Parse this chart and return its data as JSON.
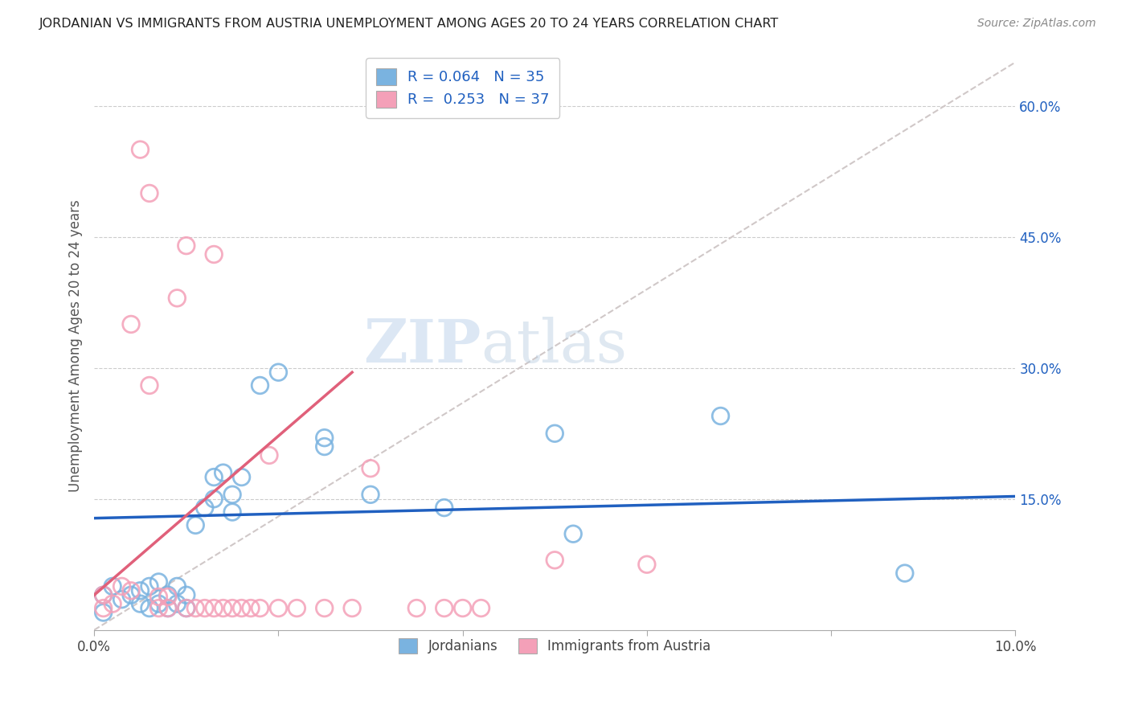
{
  "title": "JORDANIAN VS IMMIGRANTS FROM AUSTRIA UNEMPLOYMENT AMONG AGES 20 TO 24 YEARS CORRELATION CHART",
  "source": "Source: ZipAtlas.com",
  "ylabel": "Unemployment Among Ages 20 to 24 years",
  "xlim": [
    0.0,
    0.1
  ],
  "ylim": [
    0.0,
    0.65
  ],
  "yticks_right": [
    0.15,
    0.3,
    0.45,
    0.6
  ],
  "ytick_right_labels": [
    "15.0%",
    "30.0%",
    "45.0%",
    "60.0%"
  ],
  "legend_label1": "Jordanians",
  "legend_label2": "Immigrants from Austria",
  "R1": 0.064,
  "N1": 35,
  "R2": 0.253,
  "N2": 37,
  "blue_color": "#7ab3e0",
  "pink_color": "#f4a0b8",
  "blue_line_color": "#2060c0",
  "pink_line_color": "#e0607a",
  "diagonal_color": "#d0c8c8",
  "watermark_zip": "ZIP",
  "watermark_atlas": "atlas",
  "blue_line_x0": 0.0,
  "blue_line_y0": 0.128,
  "blue_line_x1": 0.1,
  "blue_line_y1": 0.153,
  "pink_line_x0": 0.0,
  "pink_line_y0": 0.04,
  "pink_line_x1": 0.028,
  "pink_line_y1": 0.295,
  "blue_dots_x": [
    0.001,
    0.001,
    0.002,
    0.003,
    0.004,
    0.005,
    0.005,
    0.006,
    0.006,
    0.007,
    0.007,
    0.008,
    0.008,
    0.009,
    0.009,
    0.01,
    0.01,
    0.011,
    0.012,
    0.013,
    0.013,
    0.014,
    0.015,
    0.015,
    0.016,
    0.018,
    0.02,
    0.025,
    0.025,
    0.03,
    0.038,
    0.05,
    0.052,
    0.068,
    0.088
  ],
  "blue_dots_y": [
    0.02,
    0.04,
    0.05,
    0.035,
    0.04,
    0.03,
    0.045,
    0.025,
    0.05,
    0.03,
    0.055,
    0.025,
    0.04,
    0.03,
    0.05,
    0.025,
    0.04,
    0.12,
    0.14,
    0.15,
    0.175,
    0.18,
    0.135,
    0.155,
    0.175,
    0.28,
    0.295,
    0.22,
    0.21,
    0.155,
    0.14,
    0.225,
    0.11,
    0.245,
    0.065
  ],
  "pink_dots_x": [
    0.001,
    0.001,
    0.002,
    0.003,
    0.004,
    0.004,
    0.005,
    0.006,
    0.006,
    0.007,
    0.007,
    0.008,
    0.008,
    0.009,
    0.01,
    0.01,
    0.011,
    0.012,
    0.013,
    0.013,
    0.014,
    0.015,
    0.016,
    0.017,
    0.018,
    0.019,
    0.02,
    0.022,
    0.025,
    0.028,
    0.03,
    0.035,
    0.038,
    0.04,
    0.042,
    0.05,
    0.06
  ],
  "pink_dots_y": [
    0.025,
    0.04,
    0.03,
    0.05,
    0.045,
    0.35,
    0.55,
    0.5,
    0.28,
    0.025,
    0.038,
    0.025,
    0.038,
    0.38,
    0.44,
    0.025,
    0.025,
    0.025,
    0.43,
    0.025,
    0.025,
    0.025,
    0.025,
    0.025,
    0.025,
    0.2,
    0.025,
    0.025,
    0.025,
    0.025,
    0.185,
    0.025,
    0.025,
    0.025,
    0.025,
    0.08,
    0.075
  ]
}
